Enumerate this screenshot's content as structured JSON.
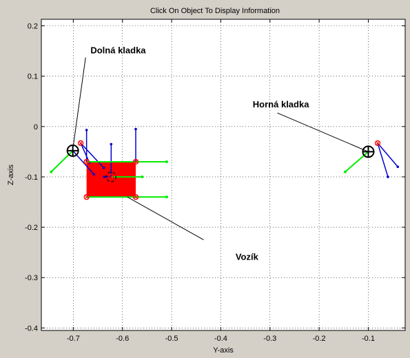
{
  "figure": {
    "title": "Click On Object To Display Information",
    "xlabel": "Y-axis",
    "ylabel": "Z-axis",
    "background": "#d4d0c8",
    "axes_background": "#ffffff",
    "grid": "dotted"
  },
  "chart_data": {
    "type": "scatter",
    "title": "Click On Object To Display Information",
    "xlabel": "Y-axis",
    "ylabel": "Z-axis",
    "xlim": [
      -0.765,
      -0.025
    ],
    "ylim": [
      -0.405,
      0.213
    ],
    "xticks": [
      -0.7,
      -0.6,
      -0.5,
      -0.4,
      -0.3,
      -0.2,
      -0.1
    ],
    "xtick_labels": [
      "-0.7",
      "-0.6",
      "-0.5",
      "-0.4",
      "-0.3",
      "-0.2",
      "-0.1"
    ],
    "yticks": [
      0.2,
      0.1,
      0,
      -0.1,
      -0.2,
      -0.3,
      -0.4
    ],
    "ytick_labels": [
      "0.2",
      "0.1",
      "0",
      "-0.1",
      "-0.2",
      "-0.3",
      "-0.4"
    ],
    "grid": true,
    "colors": {
      "cart_fill": "#ff0000",
      "joint": "#ff0000",
      "blue_axis": "#0000cc",
      "green_axis": "#00ee00",
      "pulley": "#000000"
    },
    "annotations": [
      {
        "text": "Dolná kladka",
        "x": -0.665,
        "y": 0.145,
        "target": [
          -0.701,
          -0.045
        ],
        "line_start": [
          -0.675,
          0.137
        ]
      },
      {
        "text": "Horná kladka",
        "x": -0.335,
        "y": 0.038,
        "target": [
          -0.1,
          -0.05
        ],
        "line_start": [
          -0.285,
          0.027
        ]
      },
      {
        "text": "Vozík",
        "x": -0.37,
        "y": -0.265,
        "target": [
          -0.59,
          -0.14
        ],
        "line_start": [
          -0.435,
          -0.225
        ]
      }
    ],
    "pulleys": [
      {
        "name": "dolna-kladka",
        "x": -0.701,
        "y": -0.048,
        "r": 0.012
      },
      {
        "name": "horna-kladka",
        "x": -0.1,
        "y": -0.05,
        "r": 0.012
      }
    ],
    "cart": {
      "x1": -0.673,
      "y1": -0.14,
      "x2": -0.573,
      "y2": -0.07
    },
    "cart_center": {
      "x": -0.623,
      "y": -0.1
    },
    "joints": [
      {
        "x": -0.685,
        "y": -0.033
      },
      {
        "x": -0.081,
        "y": -0.033
      },
      {
        "x": -0.673,
        "y": -0.14
      },
      {
        "x": -0.573,
        "y": -0.14
      },
      {
        "x": -0.573,
        "y": -0.07
      },
      {
        "x": -0.673,
        "y": -0.07
      },
      {
        "x": -0.623,
        "y": -0.1
      }
    ],
    "blue_segments": [
      [
        [
          -0.673,
          -0.07
        ],
        [
          -0.673,
          -0.007
        ]
      ],
      [
        [
          -0.573,
          -0.07
        ],
        [
          -0.573,
          -0.005
        ]
      ],
      [
        [
          -0.623,
          -0.1
        ],
        [
          -0.623,
          -0.035
        ]
      ],
      [
        [
          -0.685,
          -0.033
        ],
        [
          -0.667,
          -0.072
        ]
      ],
      [
        [
          -0.685,
          -0.033
        ],
        [
          -0.638,
          -0.082
        ]
      ],
      [
        [
          -0.701,
          -0.048
        ],
        [
          -0.658,
          -0.095
        ]
      ],
      [
        [
          -0.081,
          -0.033
        ],
        [
          -0.06,
          -0.1
        ]
      ],
      [
        [
          -0.081,
          -0.033
        ],
        [
          -0.04,
          -0.08
        ]
      ],
      [
        [
          -0.623,
          -0.1
        ],
        [
          -0.637,
          -0.1
        ]
      ]
    ],
    "green_segments": [
      [
        [
          -0.673,
          -0.07
        ],
        [
          -0.51,
          -0.07
        ]
      ],
      [
        [
          -0.673,
          -0.14
        ],
        [
          -0.51,
          -0.14
        ]
      ],
      [
        [
          -0.623,
          -0.1
        ],
        [
          -0.56,
          -0.1
        ]
      ],
      [
        [
          -0.701,
          -0.048
        ],
        [
          -0.745,
          -0.09
        ]
      ],
      [
        [
          -0.1,
          -0.05
        ],
        [
          -0.147,
          -0.09
        ]
      ]
    ]
  }
}
